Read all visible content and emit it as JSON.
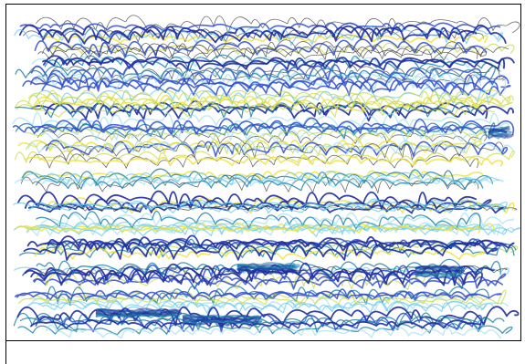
{
  "artwork": {
    "background": "#ffffff",
    "frame_color": "#000000",
    "palette": {
      "navy": "#1f2f9e",
      "royal_blue": "#2f4fd0",
      "teal": "#1a7fa8",
      "sky": "#5fc6ea",
      "pale_cyan": "#9fe0f2",
      "yellow": "#ece23a",
      "yellow_green": "#c6d93a",
      "graphite": "#3a3a3a"
    },
    "stroke_rows": 13
  }
}
